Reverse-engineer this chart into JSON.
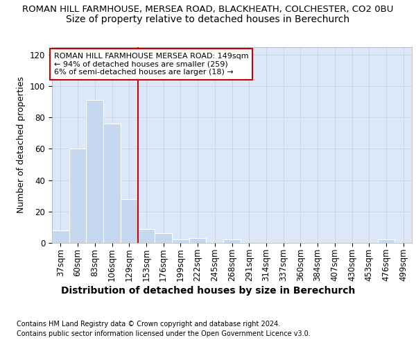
{
  "title_line1": "ROMAN HILL FARMHOUSE, MERSEA ROAD, BLACKHEATH, COLCHESTER, CO2 0BU",
  "title_line2": "Size of property relative to detached houses in Berechurch",
  "xlabel": "Distribution of detached houses by size in Berechurch",
  "ylabel": "Number of detached properties",
  "categories": [
    "37sqm",
    "60sqm",
    "83sqm",
    "106sqm",
    "129sqm",
    "153sqm",
    "176sqm",
    "199sqm",
    "222sqm",
    "245sqm",
    "268sqm",
    "291sqm",
    "314sqm",
    "337sqm",
    "360sqm",
    "384sqm",
    "407sqm",
    "430sqm",
    "453sqm",
    "476sqm",
    "499sqm"
  ],
  "values": [
    8,
    60,
    91,
    76,
    28,
    9,
    6,
    2,
    3,
    0,
    2,
    0,
    0,
    0,
    0,
    0,
    0,
    0,
    0,
    2,
    0
  ],
  "bar_color": "#c5d8f0",
  "bar_edge_color": "#ffffff",
  "vline_color": "#cc0000",
  "annotation_text": "ROMAN HILL FARMHOUSE MERSEA ROAD: 149sqm\n← 94% of detached houses are smaller (259)\n6% of semi-detached houses are larger (18) →",
  "annotation_box_facecolor": "white",
  "annotation_box_edgecolor": "#cc0000",
  "ylim": [
    0,
    125
  ],
  "yticks": [
    0,
    20,
    40,
    60,
    80,
    100,
    120
  ],
  "grid_color": "#c8d4e8",
  "background_color": "#dce8f8",
  "footer_line1": "Contains HM Land Registry data © Crown copyright and database right 2024.",
  "footer_line2": "Contains public sector information licensed under the Open Government Licence v3.0.",
  "title_fontsize": 9.5,
  "subtitle_fontsize": 10,
  "tick_fontsize": 8.5,
  "ylabel_fontsize": 9,
  "xlabel_fontsize": 10,
  "annotation_fontsize": 8,
  "footer_fontsize": 7
}
